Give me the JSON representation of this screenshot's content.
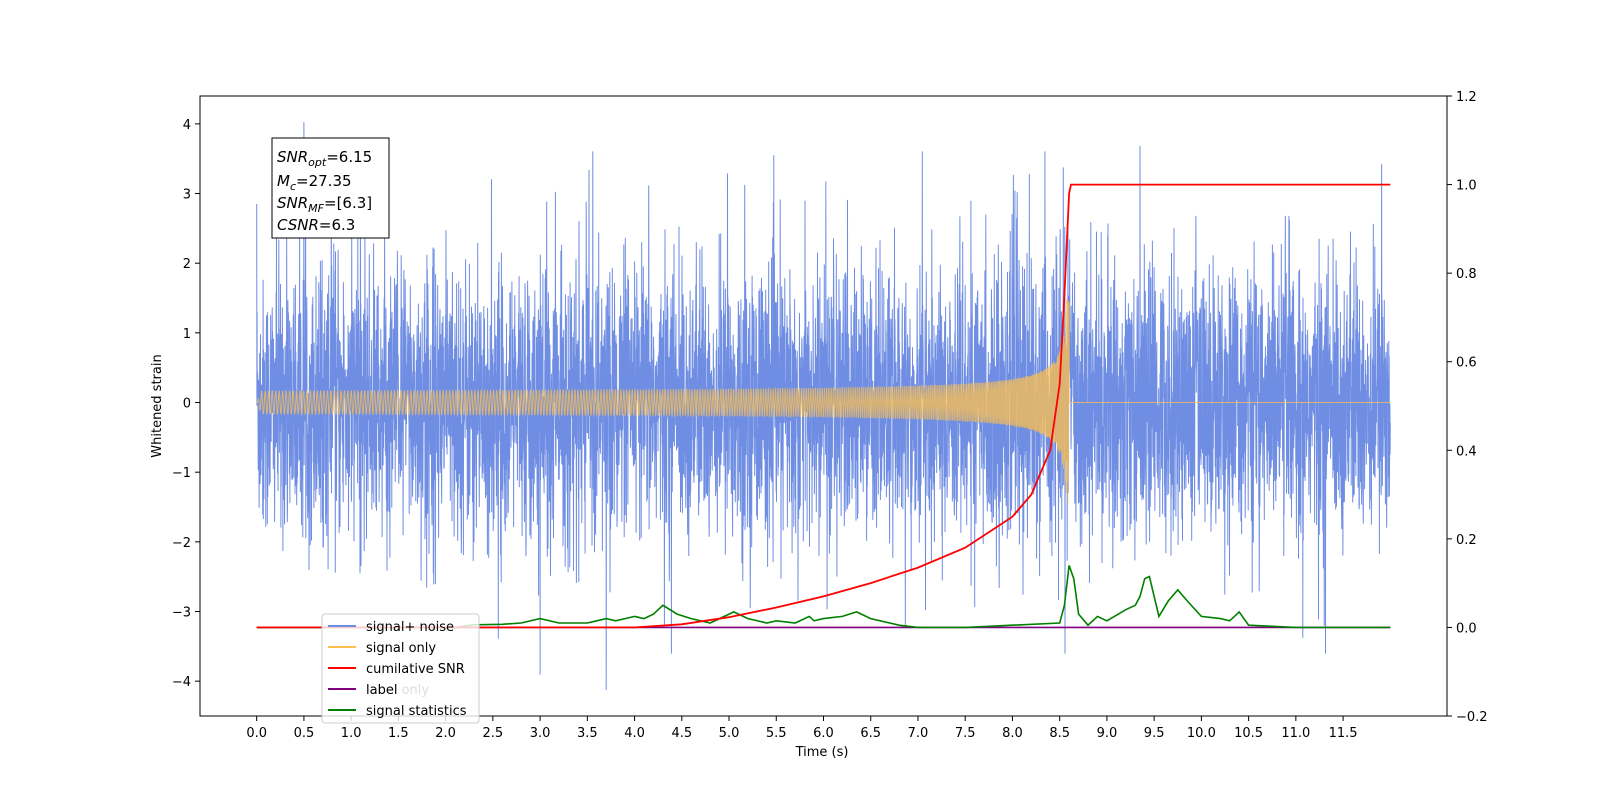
{
  "chart_data": {
    "type": "line",
    "xlabel": "Time (s)",
    "ylabel": "Whitened strain",
    "xlim": [
      -0.6,
      12.6
    ],
    "ylim": [
      -4.5,
      4.4
    ],
    "y2lim": [
      -0.2,
      1.2
    ],
    "x_ticks": [
      "0.0",
      "0.5",
      "1.0",
      "1.5",
      "2.0",
      "2.5",
      "3.0",
      "3.5",
      "4.0",
      "4.5",
      "5.0",
      "5.5",
      "6.0",
      "6.5",
      "7.0",
      "7.5",
      "8.0",
      "8.5",
      "9.0",
      "9.5",
      "10.0",
      "10.5",
      "11.0",
      "11.5"
    ],
    "y_ticks": [
      "4",
      "3",
      "2",
      "1",
      "0",
      "−1",
      "−2",
      "−3",
      "−4"
    ],
    "y2_ticks": [
      "1.2",
      "1.0",
      "0.8",
      "0.6",
      "0.4",
      "0.2",
      "0.0",
      "−0.2"
    ],
    "annotation": {
      "snr_opt": {
        "base": "SNR",
        "sub": "opt",
        "value": "=6.15"
      },
      "mc": {
        "base": "M",
        "sub": "c",
        "value": "=27.35"
      },
      "snr_mf": {
        "base": "SNR",
        "sub": "MF",
        "value": "=[6.3]"
      },
      "csnr": {
        "base": "CSNR",
        "value": "=6.3"
      }
    },
    "legend": {
      "placement": "lower-left",
      "entries": [
        {
          "label": "signal+ noise",
          "color": "#6f8ee3"
        },
        {
          "label": "signal only",
          "color": "#ffc04d"
        },
        {
          "label": "cumilative SNR",
          "color": "#ff0000"
        },
        {
          "label": "label",
          "color": "#800080"
        },
        {
          "label": "signal statistics",
          "color": "#008000"
        }
      ],
      "background_artifact_text": "label only"
    },
    "merger_time": 8.6,
    "series": [
      {
        "name": "signal+ noise",
        "color": "#6f8ee3",
        "axis": "left",
        "x_range": [
          0.0,
          12.0
        ],
        "approx_amplitude": 1.3,
        "peaks": [
          [
            0.0,
            2.85
          ],
          [
            0.5,
            4.02
          ],
          [
            3.0,
            -3.9
          ],
          [
            3.7,
            -4.12
          ],
          [
            9.35,
            3.68
          ],
          [
            11.3,
            -3.2
          ]
        ]
      },
      {
        "name": "signal only",
        "color": "#ffc04d",
        "axis": "left",
        "x_range": [
          0.0,
          8.6
        ],
        "shape": "chirp",
        "peak_amplitude": 1.5
      },
      {
        "name": "cumilative SNR",
        "color": "#ff0000",
        "axis": "right",
        "x": [
          0.0,
          4.0,
          4.5,
          5.0,
          5.5,
          6.0,
          6.5,
          7.0,
          7.5,
          8.0,
          8.2,
          8.4,
          8.5,
          8.55,
          8.6,
          8.62,
          12.0
        ],
        "values": [
          0.0,
          0.0,
          0.007,
          0.023,
          0.045,
          0.07,
          0.1,
          0.135,
          0.18,
          0.25,
          0.3,
          0.4,
          0.55,
          0.75,
          0.98,
          1.0,
          1.0
        ]
      },
      {
        "name": "label",
        "color": "#800080",
        "axis": "right",
        "x": [
          0.0,
          12.0
        ],
        "values": [
          0.0,
          0.0
        ]
      },
      {
        "name": "signal statistics",
        "color": "#008000",
        "axis": "right",
        "x": [
          0.0,
          2.1,
          2.3,
          2.6,
          2.8,
          3.0,
          3.2,
          3.5,
          3.6,
          3.7,
          3.8,
          4.0,
          4.1,
          4.2,
          4.3,
          4.45,
          4.6,
          4.8,
          4.95,
          5.05,
          5.2,
          5.4,
          5.5,
          5.7,
          5.85,
          5.9,
          6.0,
          6.2,
          6.35,
          6.5,
          6.8,
          7.0,
          7.5,
          8.5,
          8.55,
          8.6,
          8.65,
          8.7,
          8.8,
          8.9,
          9.0,
          9.2,
          9.3,
          9.35,
          9.4,
          9.45,
          9.55,
          9.65,
          9.75,
          9.85,
          10.0,
          10.2,
          10.3,
          10.4,
          10.5,
          10.7,
          11.0,
          12.0
        ],
        "values": [
          0.0,
          0.0,
          0.006,
          0.007,
          0.01,
          0.02,
          0.01,
          0.01,
          0.015,
          0.02,
          0.015,
          0.025,
          0.02,
          0.03,
          0.05,
          0.03,
          0.02,
          0.01,
          0.025,
          0.035,
          0.02,
          0.01,
          0.015,
          0.01,
          0.025,
          0.015,
          0.02,
          0.025,
          0.035,
          0.02,
          0.005,
          0.0,
          0.0,
          0.01,
          0.05,
          0.14,
          0.11,
          0.03,
          0.005,
          0.025,
          0.015,
          0.04,
          0.05,
          0.07,
          0.11,
          0.115,
          0.025,
          0.06,
          0.085,
          0.06,
          0.025,
          0.02,
          0.015,
          0.035,
          0.005,
          0.003,
          0.0,
          0.0
        ]
      }
    ]
  }
}
